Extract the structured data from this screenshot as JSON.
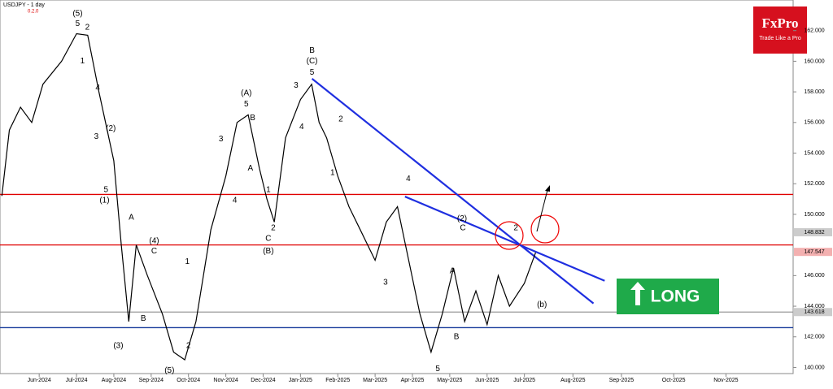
{
  "chart_data": {
    "type": "line",
    "title": "USDJPY - 1 day",
    "subtitle": "0.2.0",
    "brand": "FxPro",
    "tagline": "Trade Like a Pro",
    "signal": "LONG",
    "xlim": [
      -0.05,
      21.2
    ],
    "ylim": [
      139.6,
      164.0
    ],
    "xticks": [
      {
        "value": 1,
        "label": "Jun-2024"
      },
      {
        "value": 2,
        "label": "Jul-2024"
      },
      {
        "value": 3,
        "label": "Aug-2024"
      },
      {
        "value": 4,
        "label": "Sep-2024"
      },
      {
        "value": 5,
        "label": "Oct-2024"
      },
      {
        "value": 6,
        "label": "Nov-2024"
      },
      {
        "value": 7,
        "label": "Dec-2024"
      },
      {
        "value": 8,
        "label": "Jan-2025"
      },
      {
        "value": 9,
        "label": "Feb-2025"
      },
      {
        "value": 10,
        "label": "Mar-2025"
      },
      {
        "value": 11,
        "label": "Apr-2025"
      },
      {
        "value": 12,
        "label": "May-2025"
      },
      {
        "value": 13,
        "label": "Jun-2025"
      },
      {
        "value": 14,
        "label": "Jul-2025"
      },
      {
        "value": 15.3,
        "label": "Aug-2025"
      },
      {
        "value": 16.6,
        "label": "Sep-2025"
      },
      {
        "value": 18,
        "label": "Oct-2025"
      },
      {
        "value": 19.4,
        "label": "Nov-2025"
      }
    ],
    "yticks": [
      {
        "value": 140,
        "label": "140.000"
      },
      {
        "value": 142,
        "label": "142.000"
      },
      {
        "value": 144,
        "label": "144.000"
      },
      {
        "value": 146,
        "label": "146.000"
      },
      {
        "value": 150,
        "label": "150.000"
      },
      {
        "value": 152,
        "label": "152.000"
      },
      {
        "value": 154,
        "label": "154.000"
      },
      {
        "value": 156,
        "label": "156.000"
      },
      {
        "value": 158,
        "label": "158.000"
      },
      {
        "value": 160,
        "label": "160.000"
      },
      {
        "value": 162,
        "label": "162.000"
      }
    ],
    "series": [
      {
        "color": "#000000",
        "x": [
          0,
          0.2,
          0.5,
          0.8,
          1.1,
          1.6,
          2.0,
          2.3,
          2.6,
          3.0,
          3.2,
          3.4,
          3.6,
          3.9,
          4.3,
          4.6,
          4.9,
          5.2,
          5.6,
          6.0,
          6.3,
          6.6,
          6.9,
          7.1,
          7.3,
          7.6,
          8.0,
          8.3,
          8.5,
          8.7,
          9.0,
          9.3,
          9.6,
          10.0,
          10.3,
          10.6,
          10.9,
          11.2,
          11.5,
          11.8,
          12.1,
          12.4,
          12.7,
          13.0,
          13.3,
          13.6,
          14.0,
          14.3
        ],
        "values": [
          151.2,
          155.5,
          157,
          156,
          158.5,
          160,
          161.8,
          161.7,
          158,
          153.5,
          148,
          143,
          148,
          146,
          143.5,
          141,
          140.5,
          143,
          149,
          152.5,
          156,
          156.5,
          153,
          151,
          149.5,
          155,
          157.5,
          158.5,
          156,
          155,
          152.5,
          150.5,
          149,
          147,
          149.5,
          150.5,
          147,
          143.5,
          141,
          143.5,
          146.5,
          143,
          145,
          142.8,
          146,
          144,
          145.5,
          147.5
        ]
      }
    ],
    "levels": [
      {
        "value": 151.3,
        "color": "#e00000"
      },
      {
        "value": 148.0,
        "color": "#e00000"
      },
      {
        "value": 143.618,
        "color": "#999999"
      },
      {
        "value": 142.6,
        "color": "#1a3d9c"
      }
    ],
    "price_labels": [
      {
        "value": 148.832,
        "color": "#cccccc"
      },
      {
        "value": 147.547,
        "color": "#f3b0b0"
      },
      {
        "value": 143.618,
        "color": "#cccccc"
      }
    ],
    "trendlines": [
      {
        "x": [
          8.31,
          15.85
        ],
        "y": [
          158.86,
          144.18
        ],
        "color": "#1f2fe0"
      },
      {
        "x": [
          10.8,
          16.15
        ],
        "y": [
          151.16,
          145.66
        ],
        "color": "#1f2fe0"
      }
    ],
    "annotations": [
      {
        "text": "(5)",
        "x": 2.03,
        "y": 163.1
      },
      {
        "text": "5",
        "x": 2.03,
        "y": 162.44
      },
      {
        "text": "2",
        "x": 2.29,
        "y": 162.2
      },
      {
        "text": "1",
        "x": 2.16,
        "y": 160.0
      },
      {
        "text": "4",
        "x": 2.57,
        "y": 158.26
      },
      {
        "text": "3",
        "x": 2.53,
        "y": 155.07
      },
      {
        "text": "(2)",
        "x": 2.92,
        "y": 155.6
      },
      {
        "text": "5",
        "x": 2.79,
        "y": 151.6
      },
      {
        "text": "(1)",
        "x": 2.75,
        "y": 150.9
      },
      {
        "text": "A",
        "x": 3.47,
        "y": 149.8
      },
      {
        "text": "(4)",
        "x": 4.08,
        "y": 148.25
      },
      {
        "text": "C",
        "x": 4.08,
        "y": 147.6
      },
      {
        "text": "B",
        "x": 3.79,
        "y": 143.2
      },
      {
        "text": "(3)",
        "x": 3.12,
        "y": 141.4
      },
      {
        "text": "2",
        "x": 5.0,
        "y": 141.4
      },
      {
        "text": "(5)",
        "x": 4.49,
        "y": 139.8
      },
      {
        "text": "1",
        "x": 4.97,
        "y": 146.9
      },
      {
        "text": "3",
        "x": 5.87,
        "y": 154.9
      },
      {
        "text": "(A)",
        "x": 6.55,
        "y": 157.9
      },
      {
        "text": "5",
        "x": 6.55,
        "y": 157.2
      },
      {
        "text": "B",
        "x": 6.72,
        "y": 156.3
      },
      {
        "text": "4",
        "x": 6.24,
        "y": 150.9
      },
      {
        "text": "A",
        "x": 6.66,
        "y": 153.0
      },
      {
        "text": "C",
        "x": 7.14,
        "y": 148.4
      },
      {
        "text": "(B)",
        "x": 7.14,
        "y": 147.6
      },
      {
        "text": "2",
        "x": 7.27,
        "y": 149.1
      },
      {
        "text": "1",
        "x": 7.14,
        "y": 151.6
      },
      {
        "text": "3",
        "x": 7.88,
        "y": 158.4
      },
      {
        "text": "4",
        "x": 8.03,
        "y": 155.7
      },
      {
        "text": "B",
        "x": 8.31,
        "y": 160.7
      },
      {
        "text": "(C)",
        "x": 8.31,
        "y": 160.0
      },
      {
        "text": "5",
        "x": 8.31,
        "y": 159.25
      },
      {
        "text": "2",
        "x": 9.08,
        "y": 156.2
      },
      {
        "text": "1",
        "x": 8.86,
        "y": 152.7
      },
      {
        "text": "4",
        "x": 10.89,
        "y": 152.3
      },
      {
        "text": "3",
        "x": 10.28,
        "y": 145.55
      },
      {
        "text": "(2)",
        "x": 12.33,
        "y": 149.7
      },
      {
        "text": "C",
        "x": 12.35,
        "y": 149.1
      },
      {
        "text": "A",
        "x": 12.07,
        "y": 146.3
      },
      {
        "text": "B",
        "x": 12.18,
        "y": 142.0
      },
      {
        "text": "5",
        "x": 11.68,
        "y": 139.9
      },
      {
        "text": "2",
        "x": 13.77,
        "y": 149.1
      },
      {
        "text": "(b)",
        "x": 14.47,
        "y": 144.1
      }
    ]
  }
}
